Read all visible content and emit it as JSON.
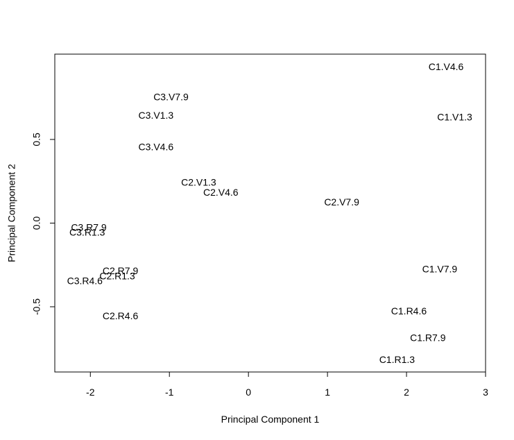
{
  "chart_data": {
    "type": "scatter",
    "title": "",
    "xlabel": "Principal Component 1",
    "ylabel": "Principal Component 2",
    "xlim": [
      -2.45,
      3.0
    ],
    "ylim": [
      -0.89,
      1.01
    ],
    "xticks": [
      -2,
      -1,
      0,
      1,
      2,
      3
    ],
    "yticks": [
      -0.5,
      0.0,
      0.5
    ],
    "x_tick_labels": [
      "-2",
      "-1",
      "0",
      "1",
      "2",
      "3"
    ],
    "y_tick_labels": [
      "-0.5",
      "0.0",
      "0.5"
    ],
    "grid": false,
    "markers": "text-labels",
    "points": [
      {
        "label": "C1.V4.6",
        "x": 2.5,
        "y": 0.93
      },
      {
        "label": "C1.V1.3",
        "x": 2.61,
        "y": 0.63
      },
      {
        "label": "C3.V7.9",
        "x": -0.98,
        "y": 0.75
      },
      {
        "label": "C3.V1.3",
        "x": -1.17,
        "y": 0.64
      },
      {
        "label": "C3.V4.6",
        "x": -1.17,
        "y": 0.45
      },
      {
        "label": "C2.V1.3",
        "x": -0.63,
        "y": 0.24
      },
      {
        "label": "C2.V4.6",
        "x": -0.35,
        "y": 0.18
      },
      {
        "label": "C2.V7.9",
        "x": 1.18,
        "y": 0.12
      },
      {
        "label": "C3.R7.9",
        "x": -2.02,
        "y": -0.03
      },
      {
        "label": "C3.R1.3",
        "x": -2.04,
        "y": -0.06
      },
      {
        "label": "C2.R7.9",
        "x": -1.62,
        "y": -0.29
      },
      {
        "label": "C2.R1.3",
        "x": -1.66,
        "y": -0.32
      },
      {
        "label": "C3.R4.6",
        "x": -2.07,
        "y": -0.35
      },
      {
        "label": "C1.V7.9",
        "x": 2.42,
        "y": -0.28
      },
      {
        "label": "C2.R4.6",
        "x": -1.62,
        "y": -0.56
      },
      {
        "label": "C1.R4.6",
        "x": 2.03,
        "y": -0.53
      },
      {
        "label": "C1.R7.9",
        "x": 2.27,
        "y": -0.69
      },
      {
        "label": "C1.R1.3",
        "x": 1.88,
        "y": -0.82
      }
    ]
  }
}
